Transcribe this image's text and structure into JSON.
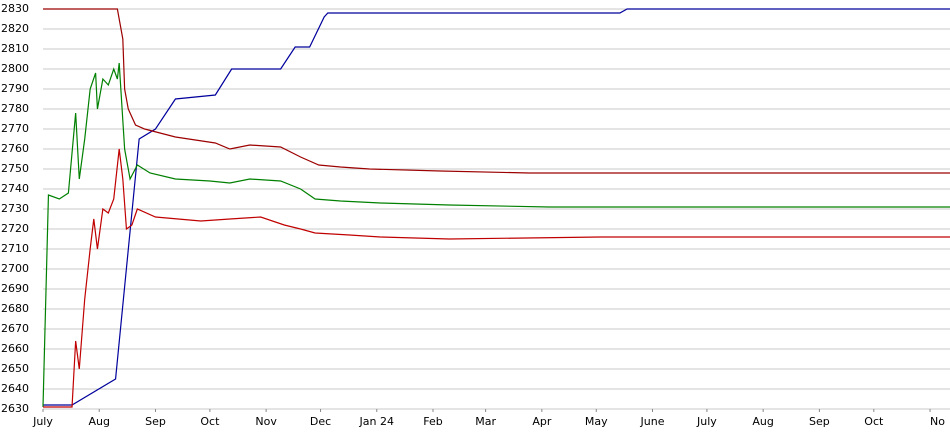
{
  "chart_data": {
    "type": "line",
    "xlim": [
      0,
      500
    ],
    "xticks": [
      {
        "value": 0,
        "label": "July"
      },
      {
        "value": 31,
        "label": "Aug"
      },
      {
        "value": 62,
        "label": "Sep"
      },
      {
        "value": 92,
        "label": "Oct"
      },
      {
        "value": 123,
        "label": "Nov"
      },
      {
        "value": 153,
        "label": "Dec"
      },
      {
        "value": 184,
        "label": "Jan 24"
      },
      {
        "value": 215,
        "label": "Feb"
      },
      {
        "value": 244,
        "label": "Mar"
      },
      {
        "value": 275,
        "label": "Apr"
      },
      {
        "value": 305,
        "label": "May"
      },
      {
        "value": 336,
        "label": "June"
      },
      {
        "value": 366,
        "label": "July"
      },
      {
        "value": 397,
        "label": "Aug"
      },
      {
        "value": 428,
        "label": "Sep"
      },
      {
        "value": 458,
        "label": "Oct"
      },
      {
        "value": 489,
        "label": "No"
      }
    ],
    "ylim": [
      2630,
      2830
    ],
    "yticks": [
      2630,
      2640,
      2650,
      2660,
      2670,
      2680,
      2690,
      2700,
      2710,
      2720,
      2730,
      2740,
      2750,
      2760,
      2770,
      2780,
      2790,
      2800,
      2810,
      2820,
      2830
    ],
    "grid": true,
    "series": [
      {
        "color": "#00009c",
        "x": [
          0,
          16,
          40,
          53,
          62,
          73,
          95,
          104,
          131,
          139,
          147,
          155,
          157,
          318,
          322,
          500
        ],
        "values": [
          2632,
          2632,
          2645,
          2765,
          2770,
          2785,
          2787,
          2800,
          2800,
          2811,
          2811,
          2826,
          2828,
          2828,
          2830,
          2830
        ]
      },
      {
        "color": "#9c0000",
        "x": [
          0,
          41,
          44,
          45,
          47,
          51,
          56,
          73,
          95,
          103,
          114,
          131,
          142,
          152,
          164,
          180,
          219,
          268,
          500
        ],
        "values": [
          2830,
          2830,
          2815,
          2790,
          2780,
          2772,
          2770,
          2766,
          2763,
          2760,
          2762,
          2761,
          2756,
          2752,
          2751,
          2750,
          2749,
          2748,
          2748
        ]
      },
      {
        "color": "#008000",
        "x": [
          0,
          3,
          9,
          14,
          18,
          20,
          23,
          26,
          29,
          30,
          33,
          36,
          39,
          41,
          42,
          45,
          48,
          52,
          59,
          73,
          92,
          103,
          114,
          131,
          142,
          150,
          164,
          186,
          224,
          279,
          500
        ],
        "values": [
          2631,
          2737,
          2735,
          2738,
          2778,
          2745,
          2765,
          2790,
          2798,
          2780,
          2795,
          2792,
          2800,
          2795,
          2803,
          2760,
          2745,
          2752,
          2748,
          2745,
          2744,
          2743,
          2745,
          2744,
          2740,
          2735,
          2734,
          2733,
          2732,
          2731,
          2731
        ]
      },
      {
        "color": "#c00000",
        "x": [
          0,
          16,
          18,
          20,
          23,
          26,
          28,
          30,
          33,
          36,
          39,
          42,
          44,
          46,
          49,
          52,
          62,
          87,
          103,
          120,
          133,
          142,
          150,
          169,
          186,
          224,
          307,
          500
        ],
        "values": [
          2631,
          2631,
          2664,
          2650,
          2685,
          2710,
          2725,
          2710,
          2730,
          2728,
          2735,
          2760,
          2745,
          2720,
          2722,
          2730,
          2726,
          2724,
          2725,
          2726,
          2722,
          2720,
          2718,
          2717,
          2716,
          2715,
          2716,
          2716
        ]
      }
    ]
  }
}
